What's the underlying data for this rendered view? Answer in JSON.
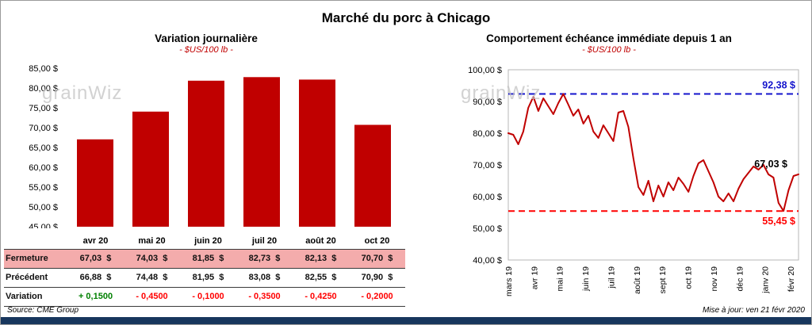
{
  "page_title": "Marché du porc à Chicago",
  "watermark": "grainWiz",
  "footer": {
    "source": "Source: CME Group",
    "updated": "Mise à jour: ven 21 févr 2020"
  },
  "colors": {
    "bar": "#C00000",
    "line": "#C00000",
    "max_line": "#1414CC",
    "min_line": "#FF0000",
    "positive": "#008000",
    "negative": "#FF0000",
    "fermeture_bg": "#F4ACAC",
    "bottom_bar": "#17365D",
    "subtitle": "#C00000"
  },
  "chart_data": [
    {
      "type": "bar",
      "title": "Variation  journalière",
      "subtitle": "- $US/100 lb -",
      "categories": [
        "avr 20",
        "mai 20",
        "juin 20",
        "juil 20",
        "août 20",
        "oct 20"
      ],
      "values": [
        67.03,
        74.03,
        81.85,
        82.73,
        82.13,
        70.7
      ],
      "ylim": [
        45,
        85
      ],
      "ytick_values": [
        85,
        80,
        75,
        70,
        65,
        60,
        55,
        50,
        45
      ],
      "ytick_labels": [
        "85,00 $",
        "80,00 $",
        "75,00 $",
        "70,00 $",
        "65,00 $",
        "60,00 $",
        "55,00 $",
        "50,00 $",
        "45,00 $"
      ],
      "bar_color": "#C00000",
      "grid": false,
      "legend": false
    },
    {
      "type": "line",
      "title": "Comportement  échéance  immédiate  depuis 1 an",
      "subtitle": "- $US/100 lb -",
      "x_labels": [
        "mars 19",
        "avr 19",
        "mai 19",
        "juin 19",
        "juil 19",
        "août 19",
        "sept 19",
        "oct 19",
        "nov 19",
        "déc 19",
        "janv 20",
        "févr 20"
      ],
      "values": [
        80,
        79.5,
        76.5,
        80.5,
        88,
        91.5,
        87,
        91,
        88.5,
        86,
        89.5,
        92.38,
        89,
        85.5,
        87.5,
        83,
        85.5,
        80.5,
        78.5,
        82.5,
        80,
        77.5,
        86.5,
        87,
        82,
        72,
        63,
        60.5,
        65,
        58.5,
        63.5,
        60,
        64.5,
        62,
        66,
        64,
        61.5,
        66.5,
        70.5,
        71.5,
        68,
        64.5,
        60,
        58.5,
        61,
        58.5,
        62.5,
        65.5,
        67.5,
        69.5,
        68.5,
        70,
        67,
        66,
        58,
        55.45,
        62,
        66.5,
        67.03
      ],
      "ylim": [
        40,
        100
      ],
      "ytick_values": [
        100,
        90,
        80,
        70,
        60,
        50,
        40
      ],
      "ytick_labels": [
        "100,00 $",
        "90,00 $",
        "80,00 $",
        "70,00 $",
        "60,00 $",
        "50,00 $",
        "40,00 $"
      ],
      "line_color": "#C00000",
      "grid": false,
      "legend": false,
      "annotations": {
        "max": {
          "value": 92.38,
          "label": "92,38 $",
          "color": "#1414CC",
          "style": "dashed"
        },
        "min": {
          "value": 55.45,
          "label": "55,45 $",
          "color": "#FF0000",
          "style": "dashed"
        },
        "last": {
          "value": 67.03,
          "label": "67,03 $",
          "color": "#000000"
        }
      }
    }
  ],
  "table": {
    "rows": [
      {
        "name": "fermeture",
        "label": "Fermeture",
        "values": [
          "67,03  $",
          "74,03  $",
          "81,85  $",
          "82,73  $",
          "82,13  $",
          "70,70  $"
        ],
        "bg": "#F4ACAC"
      },
      {
        "name": "precedent",
        "label": "Précédent",
        "values": [
          "66,88  $",
          "74,48  $",
          "81,95  $",
          "83,08  $",
          "82,55  $",
          "70,90  $"
        ]
      },
      {
        "name": "variation",
        "label": "Variation",
        "values": [
          "+ 0,1500",
          "- 0,4500",
          "- 0,1000",
          "- 0,3500",
          "- 0,4250",
          "- 0,2000"
        ],
        "colorize": true
      }
    ]
  }
}
